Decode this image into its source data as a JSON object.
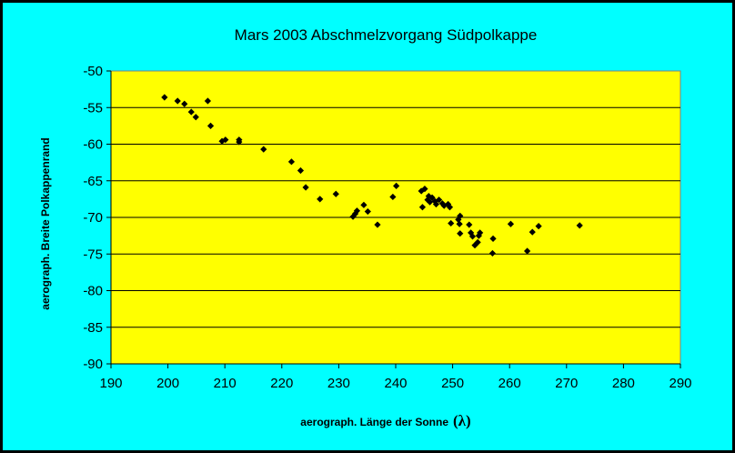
{
  "chart_data": {
    "type": "scatter",
    "title": "Mars 2003 Abschmelzvorgang Südpolkappe",
    "xlabel": "aerograph. Länge der Sonne",
    "xlabel_symbol": "(λ)",
    "ylabel": "aerograph. Breite Polkappenrand",
    "xlim": [
      190,
      290
    ],
    "ylim": [
      -90,
      -50
    ],
    "xticks": [
      "190",
      "200",
      "210",
      "220",
      "230",
      "240",
      "250",
      "260",
      "270",
      "280",
      "290"
    ],
    "yticks": [
      "-50",
      "-55",
      "-60",
      "-65",
      "-70",
      "-75",
      "-80",
      "-85",
      "-90"
    ],
    "grid": "horizontal",
    "legend": "none",
    "colors": {
      "frame": "#00ffff",
      "plot_area": "#ffff00",
      "marker": "#000000",
      "grid": "#000000"
    },
    "points": [
      [
        199.4,
        -53.6
      ],
      [
        201.7,
        -54.1
      ],
      [
        202.9,
        -54.5
      ],
      [
        204.1,
        -55.6
      ],
      [
        204.9,
        -56.3
      ],
      [
        207.0,
        -54.1
      ],
      [
        207.5,
        -57.5
      ],
      [
        209.5,
        -59.6
      ],
      [
        210.1,
        -59.4
      ],
      [
        212.5,
        -59.4
      ],
      [
        212.5,
        -59.7
      ],
      [
        216.8,
        -60.7
      ],
      [
        221.7,
        -62.4
      ],
      [
        223.3,
        -63.6
      ],
      [
        224.2,
        -65.9
      ],
      [
        226.7,
        -67.5
      ],
      [
        229.5,
        -66.8
      ],
      [
        232.5,
        -69.9
      ],
      [
        232.9,
        -69.5
      ],
      [
        233.2,
        -69.1
      ],
      [
        234.4,
        -68.3
      ],
      [
        235.1,
        -69.2
      ],
      [
        236.8,
        -71.0
      ],
      [
        239.5,
        -67.2
      ],
      [
        240.1,
        -65.7
      ],
      [
        244.5,
        -66.4
      ],
      [
        244.7,
        -68.6
      ],
      [
        245.1,
        -66.1
      ],
      [
        245.6,
        -67.6
      ],
      [
        245.8,
        -67.1
      ],
      [
        246.0,
        -67.9
      ],
      [
        246.4,
        -67.3
      ],
      [
        246.9,
        -67.8
      ],
      [
        247.1,
        -68.2
      ],
      [
        247.6,
        -67.6
      ],
      [
        248.2,
        -68.1
      ],
      [
        248.5,
        -68.4
      ],
      [
        249.2,
        -68.2
      ],
      [
        249.5,
        -68.6
      ],
      [
        249.7,
        -70.8
      ],
      [
        251.0,
        -70.3
      ],
      [
        251.3,
        -69.8
      ],
      [
        251.2,
        -70.9
      ],
      [
        251.3,
        -72.2
      ],
      [
        252.9,
        -71.0
      ],
      [
        253.2,
        -72.1
      ],
      [
        253.5,
        -72.6
      ],
      [
        253.9,
        -73.8
      ],
      [
        254.4,
        -73.4
      ],
      [
        254.6,
        -72.5
      ],
      [
        254.8,
        -72.1
      ],
      [
        257.0,
        -74.9
      ],
      [
        257.1,
        -72.9
      ],
      [
        260.2,
        -70.9
      ],
      [
        263.1,
        -74.6
      ],
      [
        264.0,
        -72.0
      ],
      [
        265.1,
        -71.2
      ],
      [
        272.3,
        -71.1
      ]
    ]
  }
}
